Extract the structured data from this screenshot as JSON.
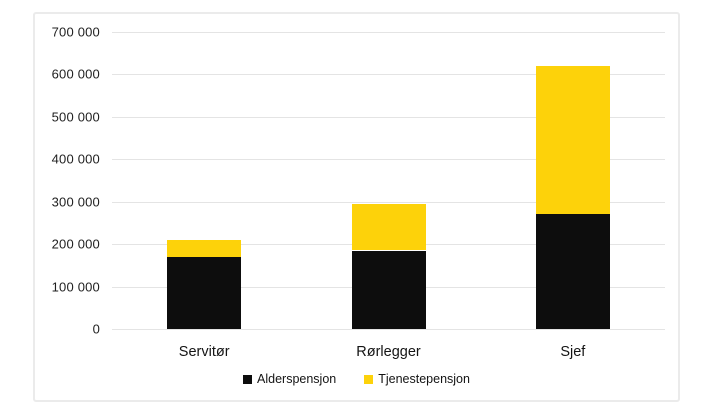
{
  "chart_data": {
    "type": "bar",
    "stacked": true,
    "title": "",
    "xlabel": "",
    "ylabel": "",
    "categories": [
      "Servitør",
      "Rørlegger",
      "Sjef"
    ],
    "series": [
      {
        "name": "Alderspensjon",
        "color": "#0d0d0d",
        "values": [
          170000,
          185000,
          270000
        ]
      },
      {
        "name": "Tjenestepensjon",
        "color": "#fdd20a",
        "values": [
          40000,
          110000,
          350000
        ]
      }
    ],
    "ylim": [
      0,
      700000
    ],
    "ytick_step": 100000,
    "ytick_labels": [
      "0",
      "100 000",
      "200 000",
      "300 000",
      "400 000",
      "500 000",
      "600 000",
      "700 000"
    ],
    "grid": true,
    "legend_position": "bottom"
  },
  "colors": {
    "card_border": "#ebebeb",
    "gridline": "#e4e4e4",
    "tick_text": "#1f1f1f",
    "label_text": "#141414",
    "background": "#ffffff"
  }
}
